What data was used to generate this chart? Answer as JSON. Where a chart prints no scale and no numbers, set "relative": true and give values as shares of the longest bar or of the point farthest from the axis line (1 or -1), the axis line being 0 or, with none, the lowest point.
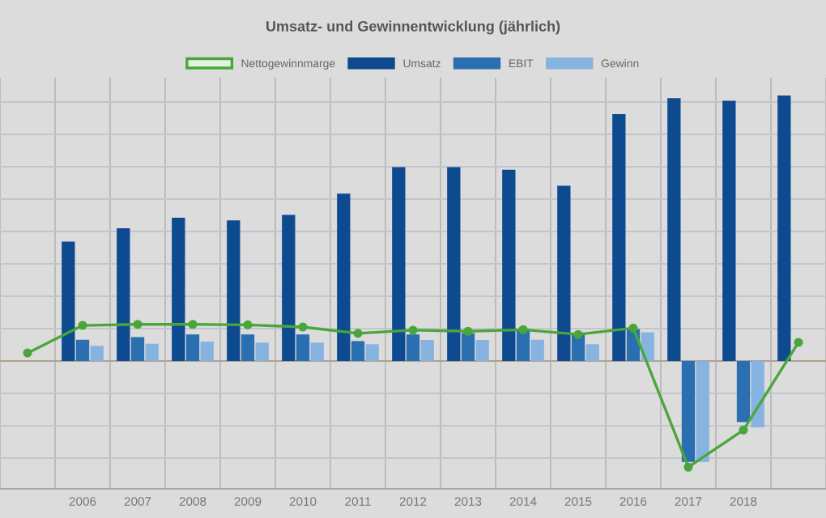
{
  "chart_data": {
    "type": "bar",
    "title": "Umsatz- und Gewinnentwicklung (jährlich)",
    "relative": true,
    "grid": true,
    "legend": "top",
    "categories": [
      null,
      "2006",
      "2007",
      "2008",
      "2009",
      "2010",
      "2011",
      "2012",
      "2013",
      "2014",
      "2015",
      "2016",
      "2017",
      "2018",
      null
    ],
    "series": [
      {
        "name": "Nettogewinnmarge",
        "type": "line",
        "color": "#4aa63a",
        "marker": "circle",
        "values": [
          0.03,
          0.134,
          0.138,
          0.138,
          0.136,
          0.128,
          0.104,
          0.116,
          0.112,
          0.118,
          0.1,
          0.124,
          -0.4,
          -0.26,
          0.07
        ]
      },
      {
        "name": "Umsatz",
        "color": "#0d4a8f",
        "values": [
          null,
          0.45,
          0.5,
          0.54,
          0.53,
          0.55,
          0.63,
          0.73,
          0.73,
          0.72,
          0.66,
          0.93,
          0.99,
          0.98,
          1
        ]
      },
      {
        "name": "EBIT",
        "color": "#2a6fb0",
        "values": [
          null,
          0.08,
          0.09,
          0.1,
          0.1,
          0.1,
          0.075,
          0.1,
          0.105,
          0.12,
          0.1,
          0.12,
          -0.38,
          -0.23,
          null
        ]
      },
      {
        "name": "Gewinn",
        "color": "#86b3e0",
        "values": [
          null,
          0.057,
          0.065,
          0.073,
          0.069,
          0.069,
          0.063,
          0.079,
          0.079,
          0.08,
          0.063,
          0.108,
          -0.38,
          -0.25,
          null
        ]
      }
    ]
  }
}
